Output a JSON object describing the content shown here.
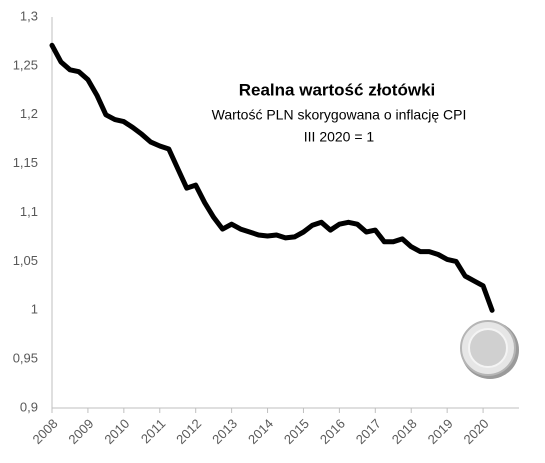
{
  "chart_data": {
    "type": "line",
    "title": "Realna wartość złotówki",
    "subtitle": "Wartość PLN skorygowana o inflację CPI",
    "annotation": "III 2020 = 1",
    "x": [
      2008,
      2008.25,
      2008.5,
      2008.75,
      2009,
      2009.25,
      2009.5,
      2009.75,
      2010,
      2010.25,
      2010.5,
      2010.75,
      2011,
      2011.25,
      2011.5,
      2011.75,
      2012,
      2012.25,
      2012.5,
      2012.75,
      2013,
      2013.25,
      2013.5,
      2013.75,
      2014,
      2014.25,
      2014.5,
      2014.75,
      2015,
      2015.25,
      2015.5,
      2015.75,
      2016,
      2016.25,
      2016.5,
      2016.75,
      2017,
      2017.25,
      2017.5,
      2017.75,
      2018,
      2018.25,
      2018.5,
      2018.75,
      2019,
      2019.25,
      2019.5,
      2019.75,
      2020,
      2020.25
    ],
    "series": [
      {
        "color": "#000000",
        "values": [
          1.271,
          1.254,
          1.246,
          1.244,
          1.236,
          1.22,
          1.2,
          1.195,
          1.193,
          1.187,
          1.18,
          1.172,
          1.168,
          1.165,
          1.145,
          1.125,
          1.128,
          1.11,
          1.095,
          1.083,
          1.088,
          1.083,
          1.08,
          1.077,
          1.076,
          1.077,
          1.074,
          1.075,
          1.08,
          1.087,
          1.09,
          1.082,
          1.088,
          1.09,
          1.088,
          1.08,
          1.082,
          1.07,
          1.07,
          1.073,
          1.065,
          1.06,
          1.06,
          1.057,
          1.052,
          1.05,
          1.035,
          1.03,
          1.025,
          1
        ]
      }
    ],
    "xlim": [
      2008,
      2021
    ],
    "xticks": [
      2008,
      2009,
      2010,
      2011,
      2012,
      2013,
      2014,
      2015,
      2016,
      2017,
      2018,
      2019,
      2020
    ],
    "ylim": [
      0.9,
      1.3
    ],
    "yticks": [
      {
        "value": 0.9,
        "label": "0,9"
      },
      {
        "value": 0.95,
        "label": "0,95"
      },
      1,
      {
        "value": 1.05,
        "label": "1,05"
      },
      {
        "value": 1.1,
        "label": "1,1"
      },
      {
        "value": 1.15,
        "label": "1,15"
      },
      {
        "value": 1.2,
        "label": "1,2"
      },
      {
        "value": 1.25,
        "label": "1,25"
      },
      {
        "value": 1.3,
        "label": "1,3"
      }
    ],
    "grid": false
  }
}
